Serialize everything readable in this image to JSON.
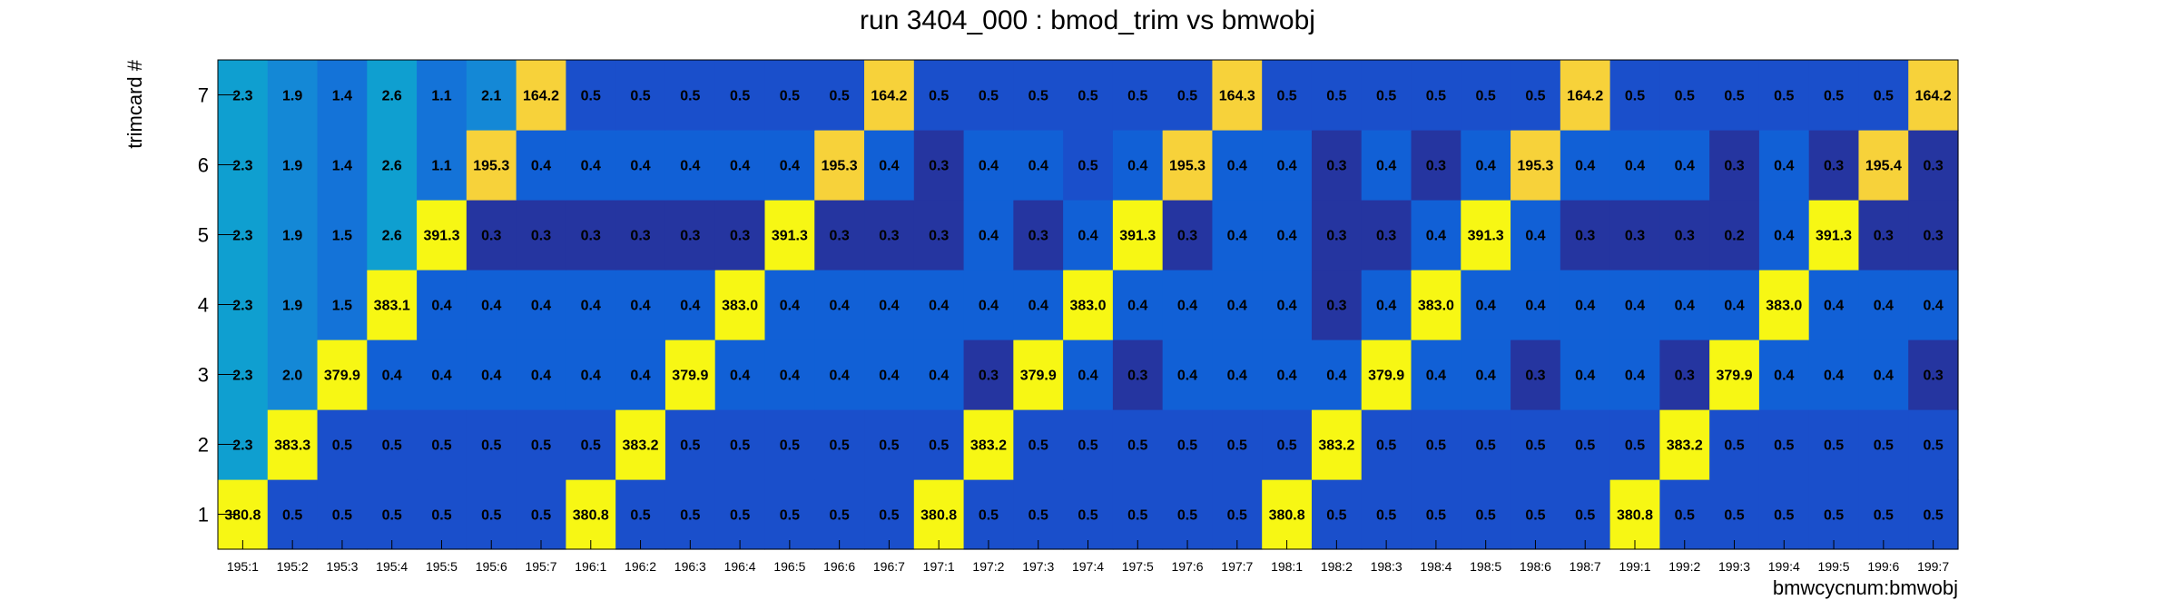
{
  "chart_data": {
    "type": "heatmap",
    "title": "run 3404_000 : bmod_trim vs bmwobj",
    "xlabel": "bmwcycnum:bmwobj",
    "ylabel": "trimcard #",
    "x_categories": [
      "195:1",
      "195:2",
      "195:3",
      "195:4",
      "195:5",
      "195:6",
      "195:7",
      "196:1",
      "196:2",
      "196:3",
      "196:4",
      "196:5",
      "196:6",
      "196:7",
      "197:1",
      "197:2",
      "197:3",
      "197:4",
      "197:5",
      "197:6",
      "197:7",
      "198:1",
      "198:2",
      "198:3",
      "198:4",
      "198:5",
      "198:6",
      "198:7",
      "199:1",
      "199:2",
      "199:3",
      "199:4",
      "199:5",
      "199:6",
      "199:7"
    ],
    "y_categories": [
      "1",
      "2",
      "3",
      "4",
      "5",
      "6",
      "7"
    ],
    "rows": [
      {
        "y": "1",
        "values": [
          "380.8",
          "0.5",
          "0.5",
          "0.5",
          "0.5",
          "0.5",
          "0.5",
          "380.8",
          "0.5",
          "0.5",
          "0.5",
          "0.5",
          "0.5",
          "0.5",
          "380.8",
          "0.5",
          "0.5",
          "0.5",
          "0.5",
          "0.5",
          "0.5",
          "380.8",
          "0.5",
          "0.5",
          "0.5",
          "0.5",
          "0.5",
          "0.5",
          "380.8",
          "0.5",
          "0.5",
          "0.5",
          "0.5",
          "0.5",
          "0.5"
        ]
      },
      {
        "y": "2",
        "values": [
          "2.3",
          "383.3",
          "0.5",
          "0.5",
          "0.5",
          "0.5",
          "0.5",
          "0.5",
          "383.2",
          "0.5",
          "0.5",
          "0.5",
          "0.5",
          "0.5",
          "0.5",
          "383.2",
          "0.5",
          "0.5",
          "0.5",
          "0.5",
          "0.5",
          "0.5",
          "383.2",
          "0.5",
          "0.5",
          "0.5",
          "0.5",
          "0.5",
          "0.5",
          "383.2",
          "0.5",
          "0.5",
          "0.5",
          "0.5",
          "0.5"
        ]
      },
      {
        "y": "3",
        "values": [
          "2.3",
          "2.0",
          "379.9",
          "0.4",
          "0.4",
          "0.4",
          "0.4",
          "0.4",
          "0.4",
          "379.9",
          "0.4",
          "0.4",
          "0.4",
          "0.4",
          "0.4",
          "0.3",
          "379.9",
          "0.4",
          "0.3",
          "0.4",
          "0.4",
          "0.4",
          "0.4",
          "379.9",
          "0.4",
          "0.4",
          "0.3",
          "0.4",
          "0.4",
          "0.3",
          "379.9",
          "0.4",
          "0.4",
          "0.4",
          "0.3"
        ]
      },
      {
        "y": "4",
        "values": [
          "2.3",
          "1.9",
          "1.5",
          "383.1",
          "0.4",
          "0.4",
          "0.4",
          "0.4",
          "0.4",
          "0.4",
          "383.0",
          "0.4",
          "0.4",
          "0.4",
          "0.4",
          "0.4",
          "0.4",
          "383.0",
          "0.4",
          "0.4",
          "0.4",
          "0.4",
          "0.3",
          "0.4",
          "383.0",
          "0.4",
          "0.4",
          "0.4",
          "0.4",
          "0.4",
          "0.4",
          "383.0",
          "0.4",
          "0.4",
          "0.4"
        ]
      },
      {
        "y": "5",
        "values": [
          "2.3",
          "1.9",
          "1.5",
          "2.6",
          "391.3",
          "0.3",
          "0.3",
          "0.3",
          "0.3",
          "0.3",
          "0.3",
          "391.3",
          "0.3",
          "0.3",
          "0.3",
          "0.4",
          "0.3",
          "0.4",
          "391.3",
          "0.3",
          "0.4",
          "0.4",
          "0.3",
          "0.3",
          "0.4",
          "391.3",
          "0.4",
          "0.3",
          "0.3",
          "0.3",
          "0.2",
          "0.4",
          "391.3",
          "0.3",
          "0.3"
        ]
      },
      {
        "y": "6",
        "values": [
          "2.3",
          "1.9",
          "1.4",
          "2.6",
          "1.1",
          "195.3",
          "0.4",
          "0.4",
          "0.4",
          "0.4",
          "0.4",
          "0.4",
          "195.3",
          "0.4",
          "0.3",
          "0.4",
          "0.4",
          "0.5",
          "0.4",
          "195.3",
          "0.4",
          "0.4",
          "0.3",
          "0.4",
          "0.3",
          "0.4",
          "195.3",
          "0.4",
          "0.4",
          "0.4",
          "0.3",
          "0.4",
          "0.3",
          "195.4",
          "0.3"
        ]
      },
      {
        "y": "7",
        "values": [
          "2.3",
          "1.9",
          "1.4",
          "2.6",
          "1.1",
          "2.1",
          "164.2",
          "0.5",
          "0.5",
          "0.5",
          "0.5",
          "0.5",
          "0.5",
          "164.2",
          "0.5",
          "0.5",
          "0.5",
          "0.5",
          "0.5",
          "0.5",
          "164.3",
          "0.5",
          "0.5",
          "0.5",
          "0.5",
          "0.5",
          "0.5",
          "164.2",
          "0.5",
          "0.5",
          "0.5",
          "0.5",
          "0.5",
          "0.5",
          "164.2"
        ]
      }
    ],
    "colors": {
      "low_dark": "#2535a0",
      "low": "#1a4fcb",
      "low_light": "#1160d6",
      "mid_blue": "#1473d8",
      "mid": "#1488d6",
      "cyan": "#0f9fd0",
      "high_yellow": "#f7f714",
      "mid_gold": "#f7d23a"
    }
  }
}
